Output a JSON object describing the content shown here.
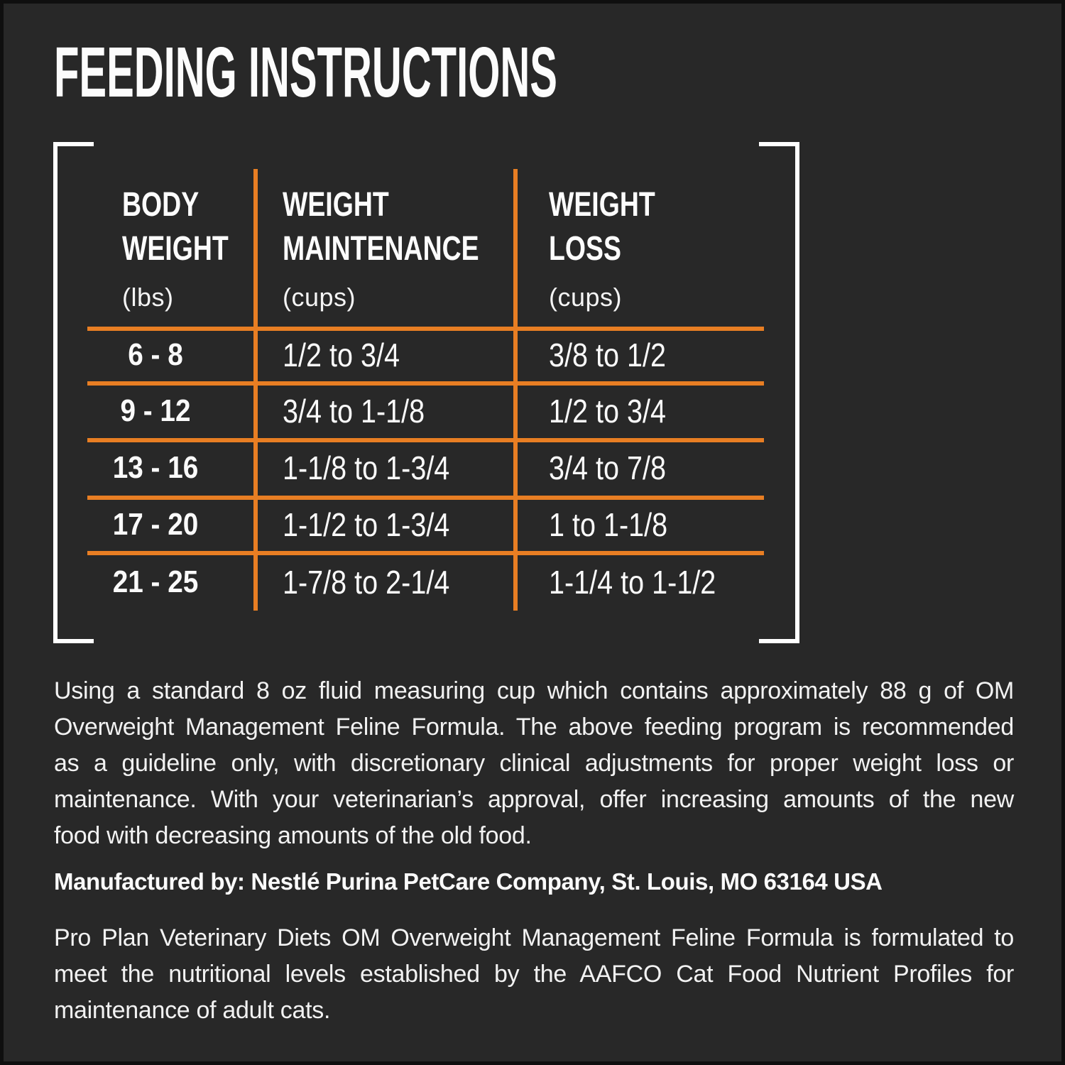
{
  "colors": {
    "background": "#282828",
    "edge": "#0f0f0f",
    "accent_orange": "#E87E23",
    "text_white": "#ffffff"
  },
  "page": {
    "title": "FEEDING INSTRUCTIONS"
  },
  "table": {
    "columns": [
      {
        "title_lines": [
          "BODY",
          "WEIGHT"
        ],
        "unit": "(lbs)"
      },
      {
        "title_lines": [
          "WEIGHT",
          "MAINTENANCE"
        ],
        "unit": "(cups)"
      },
      {
        "title_lines": [
          "WEIGHT",
          "LOSS"
        ],
        "unit": "(cups)"
      }
    ],
    "rows": [
      {
        "weight": "6 - 8",
        "maintenance": "1/2 to 3/4",
        "loss": "3/8 to 1/2"
      },
      {
        "weight": "9 - 12",
        "maintenance": "3/4 to 1-1/8",
        "loss": "1/2 to 3/4"
      },
      {
        "weight": "13 - 16",
        "maintenance": "1-1/8 to 1-3/4",
        "loss": "3/4 to 7/8"
      },
      {
        "weight": "17 - 20",
        "maintenance": "1-1/2 to 1-3/4",
        "loss": "1 to 1-1/8"
      },
      {
        "weight": "21 - 25",
        "maintenance": "1-7/8 to 2-1/4",
        "loss": "1-1/4 to 1-1/2"
      }
    ]
  },
  "notes": {
    "usage_lines": [
      "Using a standard 8 oz fluid measuring cup which contains approximately 88 g of OM",
      "Overweight Management Feline Formula. The above feeding program is recommended",
      "as a guideline only, with discretionary clinical adjustments for proper weight loss or",
      "maintenance. With your veterinarian’s approval, offer increasing amounts of the new",
      "food with decreasing amounts of the old food."
    ],
    "manufactured": "Manufactured by: Nestlé Purina PetCare Company, St. Louis, MO 63164 USA",
    "aafco_lines": [
      "Pro Plan Veterinary Diets OM Overweight Management Feline Formula is formulated to",
      "meet the nutritional levels established by the AAFCO Cat Food Nutrient Profiles for",
      "maintenance of adult cats."
    ]
  }
}
